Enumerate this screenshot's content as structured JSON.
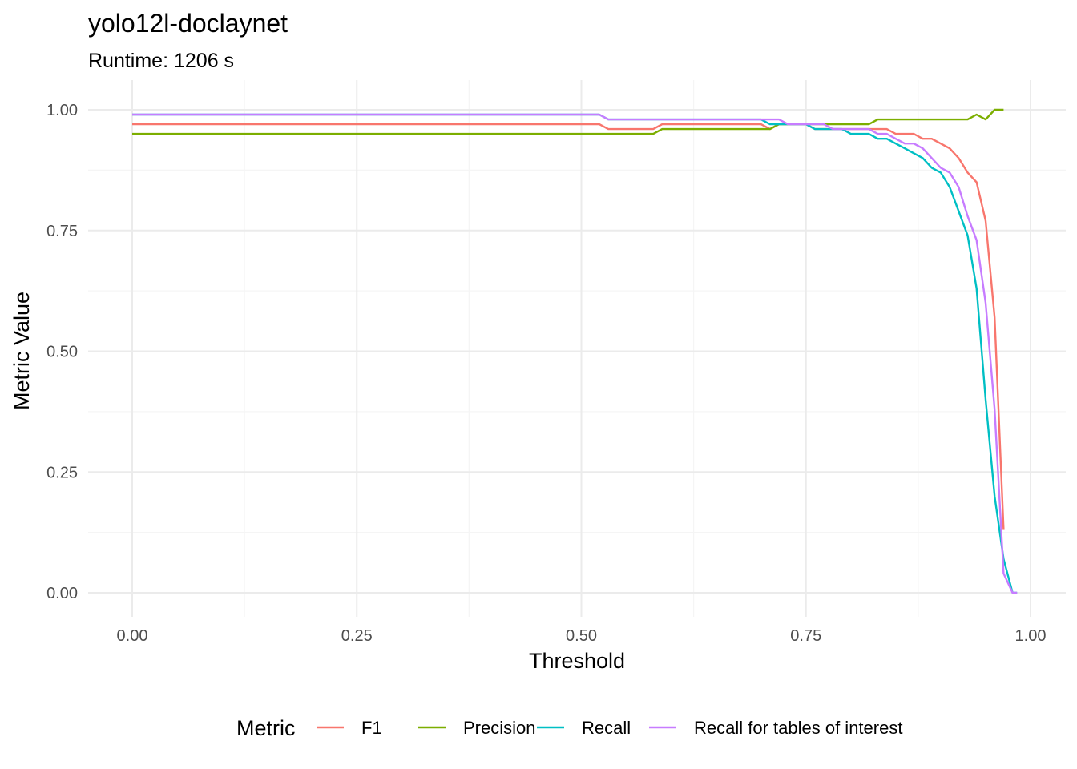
{
  "chart_data": {
    "type": "line",
    "title": "yolo12l-doclaynet",
    "subtitle": "Runtime: 1206 s",
    "xlabel": "Threshold",
    "ylabel": "Metric Value",
    "xlim": [
      0,
      1
    ],
    "ylim": [
      0,
      1
    ],
    "x_ticks": [
      "0.00",
      "0.25",
      "0.50",
      "0.75",
      "1.00"
    ],
    "y_ticks": [
      "0.00",
      "0.25",
      "0.50",
      "0.75",
      "1.00"
    ],
    "grid": true,
    "legend": {
      "title": "Metric",
      "position": "bottom"
    },
    "series": [
      {
        "name": "F1",
        "color": "#F8766D",
        "points": [
          [
            0.0,
            0.97
          ],
          [
            0.52,
            0.97
          ],
          [
            0.53,
            0.96
          ],
          [
            0.58,
            0.96
          ],
          [
            0.59,
            0.97
          ],
          [
            0.7,
            0.97
          ],
          [
            0.71,
            0.96
          ],
          [
            0.72,
            0.97
          ],
          [
            0.75,
            0.97
          ],
          [
            0.76,
            0.96
          ],
          [
            0.83,
            0.96
          ],
          [
            0.84,
            0.96
          ],
          [
            0.85,
            0.95
          ],
          [
            0.87,
            0.95
          ],
          [
            0.88,
            0.94
          ],
          [
            0.89,
            0.94
          ],
          [
            0.9,
            0.93
          ],
          [
            0.91,
            0.92
          ],
          [
            0.92,
            0.9
          ],
          [
            0.93,
            0.87
          ],
          [
            0.94,
            0.85
          ],
          [
            0.95,
            0.77
          ],
          [
            0.96,
            0.57
          ],
          [
            0.965,
            0.35
          ],
          [
            0.97,
            0.13
          ]
        ]
      },
      {
        "name": "Precision",
        "color": "#7CAE00",
        "points": [
          [
            0.0,
            0.95
          ],
          [
            0.58,
            0.95
          ],
          [
            0.59,
            0.96
          ],
          [
            0.71,
            0.96
          ],
          [
            0.72,
            0.97
          ],
          [
            0.82,
            0.97
          ],
          [
            0.83,
            0.98
          ],
          [
            0.93,
            0.98
          ],
          [
            0.94,
            0.99
          ],
          [
            0.95,
            0.98
          ],
          [
            0.96,
            1.0
          ],
          [
            0.97,
            1.0
          ]
        ]
      },
      {
        "name": "Recall",
        "color": "#00BFC4",
        "points": [
          [
            0.0,
            0.99
          ],
          [
            0.52,
            0.99
          ],
          [
            0.53,
            0.98
          ],
          [
            0.7,
            0.98
          ],
          [
            0.71,
            0.97
          ],
          [
            0.75,
            0.97
          ],
          [
            0.76,
            0.96
          ],
          [
            0.79,
            0.96
          ],
          [
            0.8,
            0.95
          ],
          [
            0.82,
            0.95
          ],
          [
            0.83,
            0.94
          ],
          [
            0.84,
            0.94
          ],
          [
            0.85,
            0.93
          ],
          [
            0.86,
            0.92
          ],
          [
            0.87,
            0.91
          ],
          [
            0.88,
            0.9
          ],
          [
            0.89,
            0.88
          ],
          [
            0.9,
            0.87
          ],
          [
            0.91,
            0.84
          ],
          [
            0.92,
            0.79
          ],
          [
            0.93,
            0.74
          ],
          [
            0.94,
            0.63
          ],
          [
            0.95,
            0.4
          ],
          [
            0.96,
            0.2
          ],
          [
            0.97,
            0.07
          ],
          [
            0.98,
            0.0
          ],
          [
            0.985,
            0.0
          ]
        ]
      },
      {
        "name": "Recall for tables of interest",
        "color": "#C77CFF",
        "points": [
          [
            0.0,
            0.99
          ],
          [
            0.52,
            0.99
          ],
          [
            0.53,
            0.98
          ],
          [
            0.72,
            0.98
          ],
          [
            0.73,
            0.97
          ],
          [
            0.77,
            0.97
          ],
          [
            0.78,
            0.96
          ],
          [
            0.82,
            0.96
          ],
          [
            0.83,
            0.95
          ],
          [
            0.84,
            0.95
          ],
          [
            0.85,
            0.94
          ],
          [
            0.86,
            0.93
          ],
          [
            0.87,
            0.93
          ],
          [
            0.88,
            0.92
          ],
          [
            0.89,
            0.9
          ],
          [
            0.9,
            0.88
          ],
          [
            0.91,
            0.87
          ],
          [
            0.92,
            0.84
          ],
          [
            0.93,
            0.78
          ],
          [
            0.94,
            0.73
          ],
          [
            0.95,
            0.6
          ],
          [
            0.96,
            0.38
          ],
          [
            0.97,
            0.04
          ],
          [
            0.98,
            0.0
          ],
          [
            0.985,
            0.0
          ]
        ]
      }
    ]
  }
}
